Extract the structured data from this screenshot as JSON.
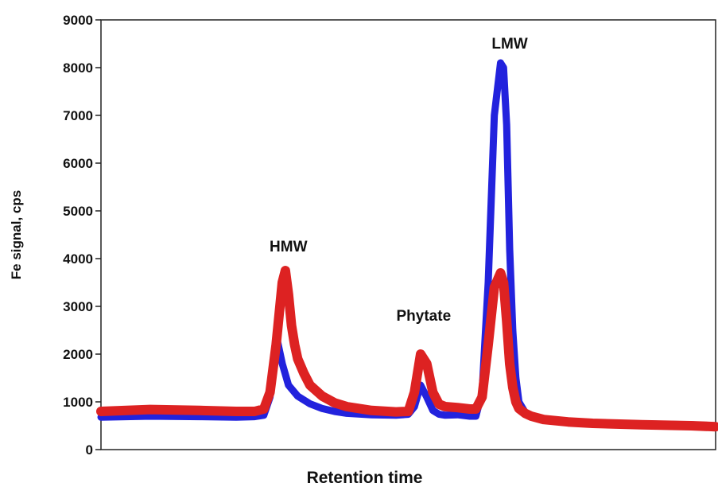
{
  "chart_data": {
    "type": "line",
    "title": "",
    "xlabel": "Retention time",
    "ylabel": "Fe signal, cps",
    "xlim": [
      0,
      100
    ],
    "ylim": [
      0,
      9000
    ],
    "y_ticks": [
      "0",
      "1000",
      "2000",
      "3000",
      "4000",
      "5000",
      "6000",
      "7000",
      "8000",
      "9000"
    ],
    "x_ticks_shown": false,
    "grid": false,
    "legend": "none",
    "annotations": [
      {
        "text": "HMW",
        "x": 30.5,
        "y": 4150
      },
      {
        "text": "Phytate",
        "x": 52.5,
        "y": 2700
      },
      {
        "text": "LMW",
        "x": 66.5,
        "y": 8400
      }
    ],
    "series": [
      {
        "color": "#2222dd",
        "x": [
          0,
          8,
          16,
          22,
          25,
          26.5,
          27.5,
          28.5,
          29.5,
          30.5,
          32,
          34,
          36,
          38,
          40,
          44,
          48,
          50,
          51,
          52,
          53,
          54,
          55,
          56,
          58,
          60,
          61,
          62,
          63,
          64,
          65,
          65.5,
          66,
          66.5,
          67,
          67.5,
          68,
          69,
          70,
          72,
          76,
          80,
          88,
          96,
          100
        ],
        "y": [
          680,
          700,
          690,
          680,
          690,
          720,
          1100,
          2400,
          1800,
          1350,
          1120,
          960,
          860,
          800,
          760,
          730,
          720,
          740,
          900,
          1350,
          1100,
          820,
          740,
          720,
          730,
          700,
          700,
          1200,
          3500,
          7000,
          8100,
          8000,
          6800,
          4200,
          2500,
          1500,
          1000,
          780,
          680,
          620,
          580,
          560,
          540,
          520,
          500
        ]
      },
      {
        "color": "#dd2222",
        "x": [
          0,
          8,
          16,
          22,
          25,
          26.5,
          27.5,
          28.5,
          29.5,
          30,
          30.5,
          31,
          31.5,
          32,
          33,
          34,
          36,
          38,
          40,
          44,
          48,
          50,
          51,
          52,
          53,
          54,
          55,
          56,
          58,
          60,
          61,
          62,
          63,
          64,
          65,
          65.5,
          66,
          66.5,
          67,
          67.5,
          68,
          69,
          70,
          72,
          76,
          80,
          88,
          96,
          100
        ],
        "y": [
          800,
          840,
          820,
          800,
          800,
          850,
          1200,
          2200,
          3500,
          3750,
          3250,
          2600,
          2200,
          1900,
          1600,
          1350,
          1120,
          980,
          900,
          820,
          790,
          800,
          1200,
          2000,
          1800,
          1200,
          950,
          900,
          880,
          850,
          850,
          1100,
          2200,
          3400,
          3700,
          3500,
          2700,
          1800,
          1300,
          1000,
          860,
          760,
          700,
          630,
          580,
          550,
          520,
          500,
          480
        ]
      }
    ]
  }
}
